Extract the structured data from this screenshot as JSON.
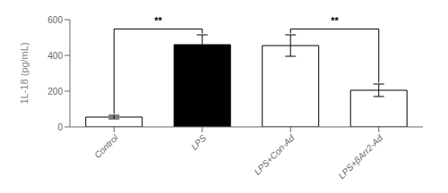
{
  "chart_data": {
    "type": "bar",
    "categories": [
      "Control",
      "LPS",
      "LPS+Con-Ad",
      "LPS+βArr2-Ad"
    ],
    "values": [
      55,
      460,
      455,
      205
    ],
    "errors": [
      10,
      55,
      60,
      35
    ],
    "colors": [
      "white",
      "black",
      "white",
      "white"
    ],
    "ylabel": "1L-18 (pg/mL)",
    "ylim": [
      0,
      600
    ],
    "yticks": [
      0,
      200,
      400,
      600
    ],
    "grid": false,
    "annotations": [
      {
        "text": "**",
        "from": "Control",
        "to": "LPS",
        "y": 548
      },
      {
        "text": "**",
        "from": "LPS+Con-Ad",
        "to": "LPS+βArr2-Ad",
        "y": 548
      }
    ]
  }
}
